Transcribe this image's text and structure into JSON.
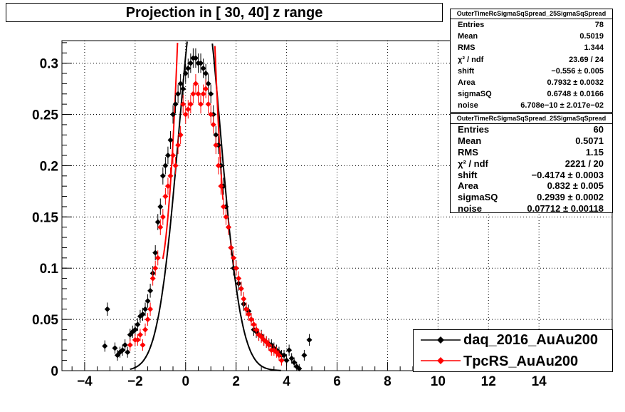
{
  "title": "Projection in [  30,  40] z range",
  "stats1": {
    "header": "OuterTimeRcSigmaSqSpread_25SigmaSqSpread",
    "rows": [
      {
        "k": "Entries",
        "v": "78"
      },
      {
        "k": "Mean",
        "v": "0.5019"
      },
      {
        "k": "RMS",
        "v": "1.344"
      },
      {
        "k": "χ² / ndf",
        "v": "23.69 / 24"
      },
      {
        "k": "shift",
        "v": "−0.556 ± 0.005"
      },
      {
        "k": "Area",
        "v": "0.7932 ± 0.0032"
      },
      {
        "k": "sigmaSQ",
        "v": "0.6748 ± 0.0166"
      },
      {
        "k": "noise",
        "v": "6.708e−10 ± 2.017e−02"
      }
    ]
  },
  "stats2": {
    "header": "OuterTimeRcSigmaSqSpread_25SigmaSqSpread",
    "rows": [
      {
        "k": "Entries",
        "v": "60"
      },
      {
        "k": "Mean",
        "v": "0.5071"
      },
      {
        "k": "RMS",
        "v": "1.15"
      },
      {
        "k": "χ² / ndf",
        "v": "2221 / 20"
      },
      {
        "k": "shift",
        "v": "−0.4174 ± 0.0003"
      },
      {
        "k": "Area",
        "v": "0.832 ± 0.005"
      },
      {
        "k": "sigmaSQ",
        "v": "0.2939 ± 0.0002"
      },
      {
        "k": "noise",
        "v": "0.07712 ± 0.00118"
      }
    ]
  },
  "legend": [
    {
      "label": "daq_2016_AuAu200",
      "color": "#000000"
    },
    {
      "label": "TpcRS_AuAu200",
      "color": "#ff0000"
    }
  ],
  "chart_data": {
    "type": "scatter",
    "title": "Projection in [  30,  40] z range",
    "xlabel": "",
    "ylabel": "",
    "xlim": [
      -4.9,
      16.9
    ],
    "ylim": [
      0,
      0.322
    ],
    "grid": true,
    "legend_position": "bottom-right",
    "x_ticks": [
      -4,
      -2,
      0,
      2,
      4,
      6,
      8,
      10,
      12,
      14
    ],
    "x_tick_labels": [
      "−4",
      "−2",
      "0",
      "2",
      "4",
      "6",
      "8",
      "10",
      "12",
      "14"
    ],
    "y_ticks": [
      0,
      0.05,
      0.1,
      0.15,
      0.2,
      0.25,
      0.3
    ],
    "y_tick_labels": [
      "0",
      "0.05",
      "0.1",
      "0.15",
      "0.2",
      "0.25",
      "0.3"
    ],
    "series": [
      {
        "name": "daq_2016_AuAu200",
        "color": "#000000",
        "x": [
          -3.2,
          -3.1,
          -2.8,
          -2.7,
          -2.6,
          -2.5,
          -2.4,
          -2.3,
          -2.2,
          -2.1,
          -2.0,
          -1.9,
          -1.8,
          -1.7,
          -1.6,
          -1.5,
          -1.4,
          -1.3,
          -1.2,
          -1.1,
          -1.0,
          -0.9,
          -0.8,
          -0.7,
          -0.6,
          -0.5,
          -0.4,
          -0.3,
          -0.2,
          -0.1,
          0.0,
          0.1,
          0.2,
          0.3,
          0.4,
          0.5,
          0.6,
          0.7,
          0.8,
          0.9,
          1.0,
          1.1,
          1.2,
          1.3,
          1.4,
          1.5,
          1.6,
          1.7,
          1.8,
          1.9,
          2.0,
          2.1,
          2.2,
          2.3,
          2.4,
          2.5,
          2.6,
          2.7,
          2.8,
          2.9,
          3.0,
          3.1,
          3.2,
          3.3,
          3.4,
          3.5,
          3.6,
          3.7,
          3.8,
          3.9,
          4.0,
          4.1,
          4.2,
          4.3,
          4.4,
          4.5,
          4.7,
          4.9
        ],
        "y": [
          0.024,
          0.06,
          0.022,
          0.015,
          0.018,
          0.02,
          0.025,
          0.018,
          0.035,
          0.038,
          0.04,
          0.045,
          0.053,
          0.055,
          0.06,
          0.068,
          0.078,
          0.095,
          0.115,
          0.145,
          0.16,
          0.19,
          0.2,
          0.21,
          0.225,
          0.25,
          0.26,
          0.27,
          0.28,
          0.275,
          0.29,
          0.295,
          0.3,
          0.305,
          0.305,
          0.3,
          0.3,
          0.295,
          0.29,
          0.28,
          0.27,
          0.25,
          0.23,
          0.22,
          0.2,
          0.18,
          0.16,
          0.14,
          0.12,
          0.1,
          0.1,
          0.085,
          0.08,
          0.065,
          0.06,
          0.058,
          0.05,
          0.04,
          0.038,
          0.035,
          0.034,
          0.03,
          0.028,
          0.026,
          0.025,
          0.022,
          0.02,
          0.018,
          0.015,
          0.015,
          0.01,
          0.02,
          0.012,
          0.008,
          0.004,
          0.002,
          0.015,
          0.03
        ]
      },
      {
        "name": "TpcRS_AuAu200",
        "color": "#ff0000",
        "x": [
          -2.2,
          -2.0,
          -1.9,
          -1.8,
          -1.7,
          -1.6,
          -1.5,
          -1.4,
          -1.3,
          -1.2,
          -1.1,
          -1.0,
          -0.9,
          -0.8,
          -0.7,
          -0.6,
          -0.5,
          -0.4,
          -0.3,
          -0.2,
          -0.1,
          0.0,
          0.1,
          0.2,
          0.3,
          0.4,
          0.5,
          0.6,
          0.7,
          0.8,
          0.9,
          1.0,
          1.1,
          1.2,
          1.3,
          1.4,
          1.5,
          1.6,
          1.7,
          1.8,
          1.9,
          2.0,
          2.1,
          2.2,
          2.3,
          2.4,
          2.5,
          2.6,
          2.7,
          2.8,
          2.9,
          3.0,
          3.1,
          3.2,
          3.3,
          3.4,
          3.5,
          3.6,
          3.7,
          3.8
        ],
        "y": [
          0.025,
          0.03,
          0.03,
          0.035,
          0.025,
          0.04,
          0.05,
          0.06,
          0.09,
          0.1,
          0.11,
          0.14,
          0.15,
          0.17,
          0.18,
          0.19,
          0.21,
          0.2,
          0.22,
          0.23,
          0.26,
          0.25,
          0.255,
          0.26,
          0.27,
          0.28,
          0.27,
          0.26,
          0.27,
          0.275,
          0.26,
          0.25,
          0.24,
          0.22,
          0.2,
          0.18,
          0.16,
          0.15,
          0.14,
          0.12,
          0.11,
          0.1,
          0.09,
          0.08,
          0.07,
          0.06,
          0.055,
          0.05,
          0.045,
          0.04,
          0.035,
          0.033,
          0.03,
          0.028,
          0.025,
          0.02,
          0.02,
          0.018,
          0.015,
          0.01
        ]
      }
    ],
    "fits": [
      {
        "name": "daq_2016_AuAu200 fit",
        "color": "#000000",
        "shift": -0.556,
        "area": 0.7932,
        "sigmaSQ": 0.6748,
        "noise": 0.0
      },
      {
        "name": "TpcRS_AuAu200 fit",
        "color": "#ff0000",
        "shift": -0.4174,
        "area": 0.832,
        "sigmaSQ": 0.2939,
        "noise": 0.07712
      }
    ]
  }
}
